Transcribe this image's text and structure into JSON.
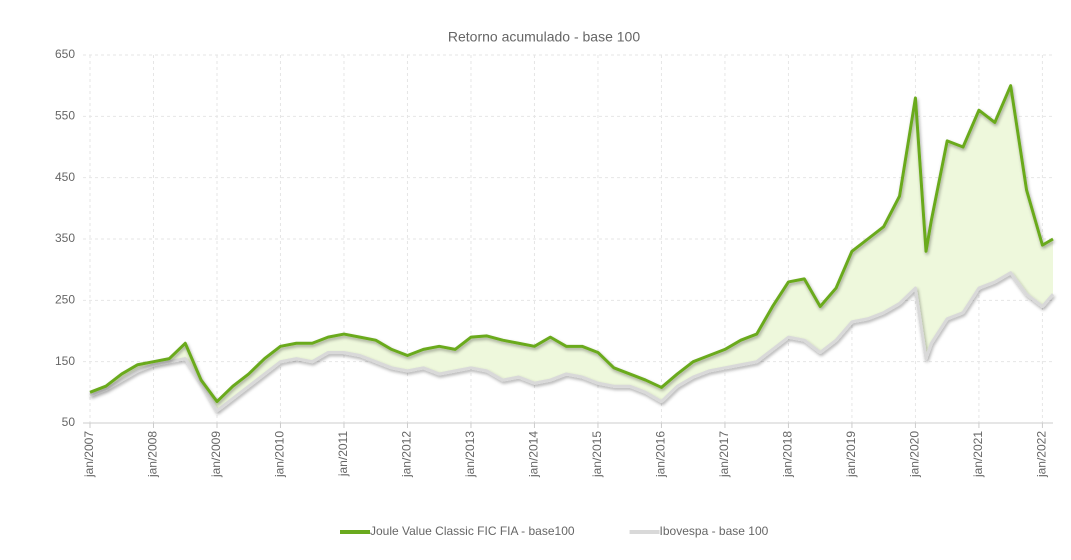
{
  "chart_data": {
    "type": "line",
    "title": "Retorno acumulado - base 100",
    "x": [
      "2007-01",
      "2007-04",
      "2007-07",
      "2007-10",
      "2008-01",
      "2008-04",
      "2008-07",
      "2008-10",
      "2009-01",
      "2009-04",
      "2009-07",
      "2009-10",
      "2010-01",
      "2010-04",
      "2010-07",
      "2010-10",
      "2011-01",
      "2011-04",
      "2011-07",
      "2011-10",
      "2012-01",
      "2012-04",
      "2012-07",
      "2012-10",
      "2013-01",
      "2013-04",
      "2013-07",
      "2013-10",
      "2014-01",
      "2014-04",
      "2014-07",
      "2014-10",
      "2015-01",
      "2015-04",
      "2015-07",
      "2015-10",
      "2016-01",
      "2016-04",
      "2016-07",
      "2016-10",
      "2017-01",
      "2017-04",
      "2017-07",
      "2017-10",
      "2018-01",
      "2018-04",
      "2018-07",
      "2018-10",
      "2019-01",
      "2019-04",
      "2019-07",
      "2019-10",
      "2020-01",
      "2020-03",
      "2020-04",
      "2020-07",
      "2020-10",
      "2021-01",
      "2021-04",
      "2021-07",
      "2021-10",
      "2022-01",
      "2022-03"
    ],
    "series": [
      {
        "name": "Joule Value Classic FIC FIA - base100",
        "color": "#6aaa1e",
        "values": [
          100,
          110,
          130,
          145,
          150,
          155,
          180,
          120,
          85,
          110,
          130,
          155,
          175,
          180,
          180,
          190,
          195,
          190,
          185,
          170,
          160,
          170,
          175,
          170,
          190,
          192,
          185,
          180,
          175,
          190,
          175,
          175,
          165,
          140,
          130,
          120,
          108,
          130,
          150,
          160,
          170,
          185,
          195,
          240,
          280,
          285,
          240,
          270,
          330,
          350,
          370,
          420,
          580,
          330,
          380,
          510,
          500,
          560,
          540,
          600,
          430,
          340,
          350
        ]
      },
      {
        "name": "Ibovespa - base 100",
        "color": "#d9d9d9",
        "values": [
          95,
          105,
          120,
          135,
          145,
          150,
          155,
          115,
          70,
          90,
          110,
          130,
          150,
          155,
          150,
          165,
          165,
          160,
          150,
          140,
          135,
          140,
          130,
          135,
          140,
          135,
          120,
          125,
          115,
          120,
          130,
          125,
          115,
          110,
          110,
          100,
          85,
          110,
          125,
          135,
          140,
          145,
          150,
          170,
          190,
          185,
          165,
          185,
          215,
          220,
          230,
          245,
          270,
          155,
          180,
          220,
          230,
          270,
          280,
          295,
          260,
          240,
          260
        ]
      }
    ],
    "xlim": [
      "2007-01",
      "2022-03"
    ],
    "xticks": [
      {
        "value": "2007-01",
        "label": "jan/2007"
      },
      {
        "value": "2008-01",
        "label": "jan/2008"
      },
      {
        "value": "2009-01",
        "label": "jan/2009"
      },
      {
        "value": "2010-01",
        "label": "jan/2010"
      },
      {
        "value": "2011-01",
        "label": "jan/2011"
      },
      {
        "value": "2012-01",
        "label": "jan/2012"
      },
      {
        "value": "2013-01",
        "label": "jan/2013"
      },
      {
        "value": "2014-01",
        "label": "jan/2014"
      },
      {
        "value": "2015-01",
        "label": "jan/2015"
      },
      {
        "value": "2016-01",
        "label": "jan/2016"
      },
      {
        "value": "2017-01",
        "label": "jan/2017"
      },
      {
        "value": "2018-01",
        "label": "jan/2018"
      },
      {
        "value": "2019-01",
        "label": "jan/2019"
      },
      {
        "value": "2020-01",
        "label": "jan/2020"
      },
      {
        "value": "2021-01",
        "label": "jan/2021"
      },
      {
        "value": "2022-01",
        "label": "jan/2022"
      }
    ],
    "ylim": [
      50,
      650
    ],
    "yticks": [
      50,
      150,
      250,
      350,
      450,
      550,
      650
    ],
    "grid": true,
    "fill_between": "#eef8dc",
    "legend": "bottom"
  }
}
